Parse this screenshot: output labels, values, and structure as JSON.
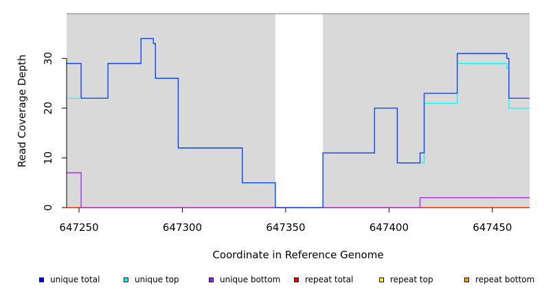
{
  "chart_data": {
    "type": "line",
    "title": "",
    "xlabel": "Coordinate in Reference Genome",
    "ylabel": "Read Coverage Depth",
    "xlim": [
      647244,
      647468
    ],
    "ylim": [
      0,
      39
    ],
    "x_ticks": [
      647250,
      647300,
      647350,
      647400,
      647450
    ],
    "x_tick_labels": [
      "647250",
      "647300",
      "647350",
      "647400",
      "647450"
    ],
    "y_ticks": [
      0,
      10,
      20,
      30
    ],
    "y_tick_labels": [
      "0",
      "10",
      "20",
      "30"
    ],
    "background_color": "#d9d9d9",
    "gap_region": {
      "x_start": 647345,
      "x_end": 647368,
      "color": "#ffffff"
    },
    "grid": false,
    "legend_position": "bottom",
    "series": [
      {
        "name": "unique total",
        "color": "#0000ff",
        "points": [
          [
            647244,
            29
          ],
          [
            647251,
            29
          ],
          [
            647251,
            22
          ],
          [
            647264,
            22
          ],
          [
            647264,
            29
          ],
          [
            647280,
            29
          ],
          [
            647280,
            34
          ],
          [
            647286,
            34
          ],
          [
            647286,
            33
          ],
          [
            647287,
            33
          ],
          [
            647287,
            26
          ],
          [
            647298,
            26
          ],
          [
            647298,
            12
          ],
          [
            647329,
            12
          ],
          [
            647329,
            5
          ],
          [
            647345,
            5
          ],
          [
            647345,
            0
          ],
          [
            647368,
            0
          ],
          [
            647368,
            11
          ],
          [
            647393,
            11
          ],
          [
            647393,
            20
          ],
          [
            647404,
            20
          ],
          [
            647404,
            9
          ],
          [
            647415,
            9
          ],
          [
            647415,
            11
          ],
          [
            647417,
            11
          ],
          [
            647417,
            23
          ],
          [
            647433,
            23
          ],
          [
            647433,
            31
          ],
          [
            647457,
            31
          ],
          [
            647457,
            30
          ],
          [
            647458,
            30
          ],
          [
            647458,
            22
          ],
          [
            647468,
            22
          ]
        ]
      },
      {
        "name": "unique top",
        "color": "#00ffff",
        "points": [
          [
            647244,
            22
          ],
          [
            647251,
            22
          ],
          [
            647264,
            22
          ],
          [
            647264,
            29
          ],
          [
            647280,
            29
          ],
          [
            647280,
            34
          ],
          [
            647286,
            34
          ],
          [
            647286,
            33
          ],
          [
            647287,
            33
          ],
          [
            647287,
            26
          ],
          [
            647298,
            26
          ],
          [
            647298,
            12
          ],
          [
            647329,
            12
          ],
          [
            647329,
            5
          ],
          [
            647345,
            5
          ],
          [
            647345,
            0
          ],
          [
            647368,
            0
          ],
          [
            647368,
            11
          ],
          [
            647393,
            11
          ],
          [
            647393,
            20
          ],
          [
            647404,
            20
          ],
          [
            647404,
            9
          ],
          [
            647417,
            9
          ],
          [
            647417,
            21
          ],
          [
            647433,
            21
          ],
          [
            647433,
            29
          ],
          [
            647457,
            29
          ],
          [
            647457,
            28
          ],
          [
            647458,
            28
          ],
          [
            647458,
            20
          ],
          [
            647468,
            20
          ]
        ]
      },
      {
        "name": "unique bottom",
        "color": "#a020f0",
        "points": [
          [
            647244,
            7
          ],
          [
            647251,
            7
          ],
          [
            647251,
            0
          ],
          [
            647415,
            0
          ],
          [
            647415,
            2
          ],
          [
            647468,
            2
          ]
        ]
      },
      {
        "name": "repeat total",
        "color": "#ff0000",
        "points": [
          [
            647244,
            0
          ],
          [
            647468,
            0
          ]
        ]
      },
      {
        "name": "repeat top",
        "color": "#ffff00",
        "points": [
          [
            647244,
            0
          ],
          [
            647468,
            0
          ]
        ]
      },
      {
        "name": "repeat bottom",
        "color": "#ffa500",
        "points": [
          [
            647244,
            0
          ],
          [
            647468,
            0
          ]
        ]
      }
    ]
  }
}
